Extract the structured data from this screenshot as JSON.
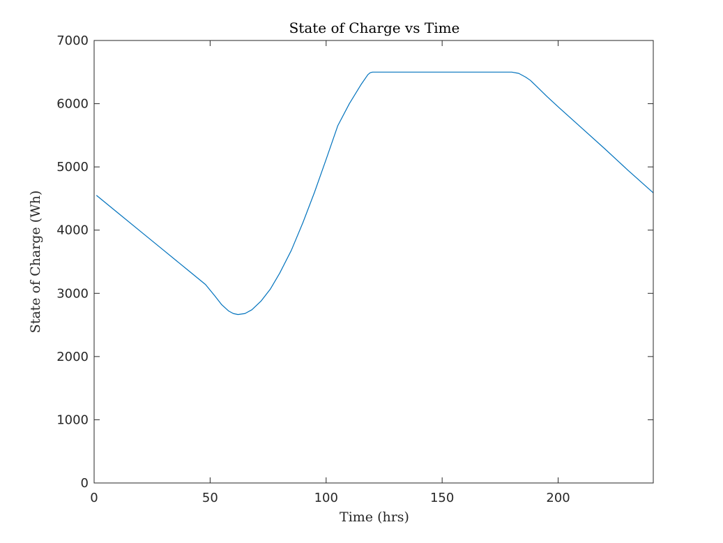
{
  "chart_data": {
    "type": "line",
    "title": "State of Charge vs Time",
    "xlabel": "Time (hrs)",
    "ylabel": "State of Charge (Wh)",
    "xlim": [
      0,
      241
    ],
    "ylim": [
      0,
      7000
    ],
    "xticks": [
      0,
      50,
      100,
      150,
      200
    ],
    "yticks": [
      0,
      1000,
      2000,
      3000,
      4000,
      5000,
      6000,
      7000
    ],
    "grid": false,
    "line_color": "#0072BD",
    "series": [
      {
        "x": [
          1,
          10,
          20,
          30,
          40,
          48,
          52,
          55,
          58,
          60,
          62,
          65,
          68,
          72,
          76,
          80,
          85,
          90,
          95,
          100,
          105,
          110,
          115,
          118,
          119,
          120,
          121,
          130,
          140,
          150,
          160,
          170,
          180,
          183,
          186,
          188,
          190,
          195,
          200,
          210,
          220,
          230,
          241
        ],
        "y": [
          4550,
          4280,
          3980,
          3680,
          3380,
          3140,
          2960,
          2820,
          2720,
          2680,
          2665,
          2680,
          2740,
          2880,
          3070,
          3320,
          3680,
          4120,
          4600,
          5120,
          5650,
          6000,
          6300,
          6460,
          6490,
          6500,
          6500,
          6500,
          6500,
          6500,
          6500,
          6500,
          6500,
          6480,
          6420,
          6370,
          6300,
          6120,
          5950,
          5620,
          5290,
          4950,
          4590
        ]
      }
    ]
  }
}
